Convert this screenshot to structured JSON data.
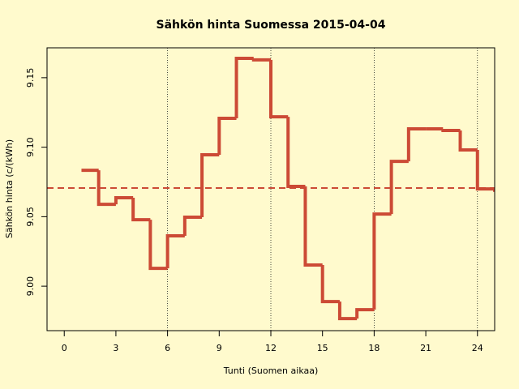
{
  "chart_data": {
    "type": "step",
    "title": "Sähkön hinta Suomessa 2015-04-04",
    "x_label": "Tunti (Suomen aikaa)",
    "y_label": "Sähkön hinta (c/(kWh)",
    "x": [
      1,
      2,
      3,
      4,
      5,
      6,
      7,
      8,
      9,
      10,
      11,
      12,
      13,
      14,
      15,
      16,
      17,
      18,
      19,
      20,
      21,
      22,
      23,
      24,
      25
    ],
    "values": [
      9.0834,
      9.0589,
      9.0636,
      9.0478,
      9.0128,
      9.0362,
      9.0496,
      9.0945,
      9.1208,
      9.1639,
      9.1628,
      9.1219,
      9.0718,
      9.0152,
      8.9889,
      8.9767,
      8.9831,
      9.0519,
      9.0898,
      9.1132,
      9.1132,
      9.112,
      9.098,
      9.07,
      9.069
    ],
    "color": "#cc4a35",
    "mean_line": 9.0706,
    "vlines": [
      6,
      12,
      18,
      24
    ],
    "xlim": [
      -1,
      25
    ],
    "xticks": [
      0,
      3,
      6,
      9,
      12,
      15,
      18,
      21,
      24
    ],
    "ylim": [
      8.968,
      9.1715
    ],
    "yticks": [
      {
        "value": 9,
        "label": "9.00"
      },
      9.05,
      {
        "value": 9.1,
        "label": "9.10"
      },
      9.15
    ]
  }
}
